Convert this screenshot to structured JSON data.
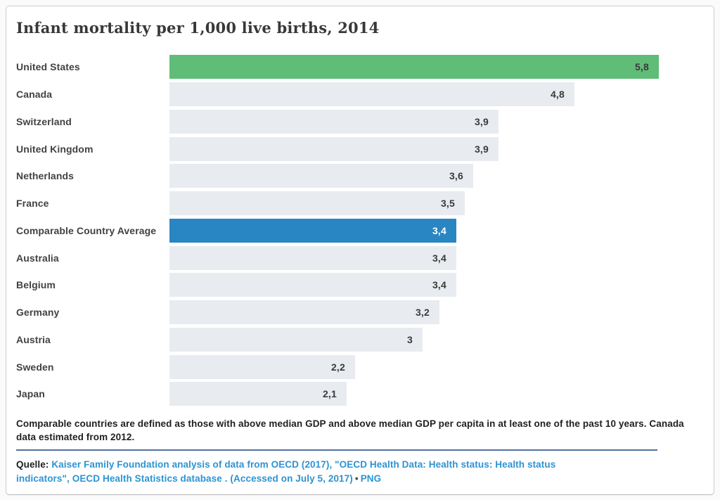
{
  "header": {
    "title": "Infant mortality per 1,000 live births, 2014"
  },
  "chart_data": {
    "type": "bar",
    "orientation": "horizontal",
    "title": "Infant mortality per 1,000 live births, 2014",
    "xlim": [
      0,
      5.8
    ],
    "grid": false,
    "legend": "none",
    "value_label_position": "inside-end",
    "decimal_separator": "comma",
    "categories": [
      "United States",
      "Canada",
      "Switzerland",
      "United Kingdom",
      "Netherlands",
      "France",
      "Comparable Country Average",
      "Australia",
      "Belgium",
      "Germany",
      "Austria",
      "Sweden",
      "Japan"
    ],
    "values": [
      5.8,
      4.8,
      3.9,
      3.9,
      3.6,
      3.5,
      3.4,
      3.4,
      3.4,
      3.2,
      3,
      2.2,
      2.1
    ],
    "value_display": [
      "5,8",
      "4,8",
      "3,9",
      "3,9",
      "3,6",
      "3,5",
      "3,4",
      "3,4",
      "3,4",
      "3,2",
      "3",
      "2,2",
      "2,1"
    ],
    "bar_colors": [
      "#5fbd78",
      "#e8ecf0",
      "#e8ecf0",
      "#e8ecf0",
      "#e8ecf0",
      "#e8ecf0",
      "#2a86c2",
      "#e8ecf0",
      "#e8ecf0",
      "#e8ecf0",
      "#e8ecf0",
      "#e8ecf0",
      "#e8ecf0"
    ],
    "value_text_colors": [
      "#3a3a3a",
      "#3a3a3a",
      "#3a3a3a",
      "#3a3a3a",
      "#3a3a3a",
      "#3a3a3a",
      "#ffffff",
      "#3a3a3a",
      "#3a3a3a",
      "#3a3a3a",
      "#3a3a3a",
      "#3a3a3a",
      "#3a3a3a"
    ],
    "highlight_meaning": {
      "green": "United States",
      "blue": "Comparable Country Average",
      "gray": "individual comparable countries"
    }
  },
  "note": {
    "text": "Comparable countries are defined as those with above median GDP and above median GDP per capita in at least one of the past 10 years. Canada data estimated from 2012."
  },
  "source": {
    "prefix": "Quelle:",
    "link_text": "Kaiser Family Foundation analysis of data from OECD (2017), \"OECD Health Data: Health status: Health status indicators\", OECD Health Statistics database . (Accessed on July 5, 2017)",
    "separator": "•",
    "format_label": "PNG",
    "link_color": "#2d93d2"
  }
}
